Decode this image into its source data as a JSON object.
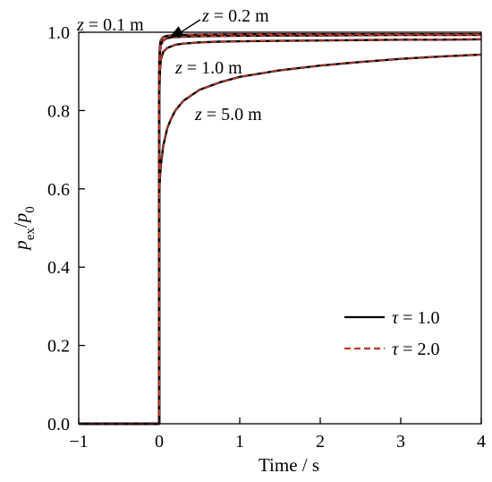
{
  "chart_data": {
    "type": "line",
    "title": "",
    "xlabel": "Time / s",
    "ylabel": {
      "base": "p",
      "sub": "ex",
      "sep": "/",
      "base2": "p",
      "sub2": "0"
    },
    "xlim": [
      -1,
      4
    ],
    "ylim": [
      0,
      1.0
    ],
    "xticks": [
      -1,
      0,
      1,
      2,
      3,
      4
    ],
    "yticks": [
      0.0,
      0.2,
      0.4,
      0.6,
      0.8,
      1.0
    ],
    "xtick_labels": [
      "−1",
      "0",
      "1",
      "2",
      "3",
      "4"
    ],
    "ytick_labels": [
      "0.0",
      "0.2",
      "0.4",
      "0.6",
      "0.8",
      "1.0"
    ],
    "grid": false,
    "legend_position": "lower-right",
    "legend": [
      {
        "symbol": "τ",
        "text": " = 1.0",
        "color": "#000000",
        "style": "solid"
      },
      {
        "symbol": "τ",
        "text": " = 2.0",
        "color": "#c0392b",
        "style": "dashed"
      }
    ],
    "annotations": [
      {
        "var": "z",
        "text": " = 0.1 m"
      },
      {
        "var": "z",
        "text": " = 0.2 m"
      },
      {
        "var": "z",
        "text": " = 1.0 m"
      },
      {
        "var": "z",
        "text": " = 5.0 m"
      }
    ],
    "curves": [
      {
        "label": "z = 0.1 m",
        "x": [
          -1,
          0,
          0,
          0.01,
          0.02,
          0.05,
          0.1,
          0.2,
          0.5,
          1,
          2,
          3,
          4
        ],
        "y": [
          0,
          0,
          0.93,
          0.968,
          0.98,
          0.988,
          0.991,
          0.993,
          0.994,
          0.995,
          0.995,
          0.995,
          0.995
        ]
      },
      {
        "label": "z = 0.2 m",
        "x": [
          -1,
          0,
          0,
          0.01,
          0.02,
          0.05,
          0.1,
          0.2,
          0.5,
          1,
          2,
          3,
          4
        ],
        "y": [
          0,
          0,
          0.9,
          0.95,
          0.968,
          0.979,
          0.985,
          0.988,
          0.99,
          0.991,
          0.992,
          0.993,
          0.993
        ]
      },
      {
        "label": "z = 1.0 m",
        "x": [
          -1,
          0,
          0,
          0.01,
          0.02,
          0.05,
          0.1,
          0.2,
          0.3,
          0.5,
          0.75,
          1,
          1.5,
          2,
          2.5,
          3,
          3.5,
          4
        ],
        "y": [
          0,
          0,
          0.84,
          0.9,
          0.93,
          0.95,
          0.96,
          0.968,
          0.971,
          0.974,
          0.976,
          0.977,
          0.978,
          0.979,
          0.98,
          0.981,
          0.981,
          0.982
        ]
      },
      {
        "label": "z = 5.0 m",
        "x": [
          -1,
          0,
          0,
          0.01,
          0.02,
          0.05,
          0.1,
          0.15,
          0.2,
          0.3,
          0.5,
          0.75,
          1,
          1.5,
          2,
          2.5,
          3,
          3.5,
          4
        ],
        "y": [
          0,
          0,
          0.59,
          0.63,
          0.66,
          0.71,
          0.755,
          0.78,
          0.8,
          0.825,
          0.853,
          0.872,
          0.886,
          0.903,
          0.915,
          0.924,
          0.932,
          0.938,
          0.943
        ]
      }
    ]
  }
}
